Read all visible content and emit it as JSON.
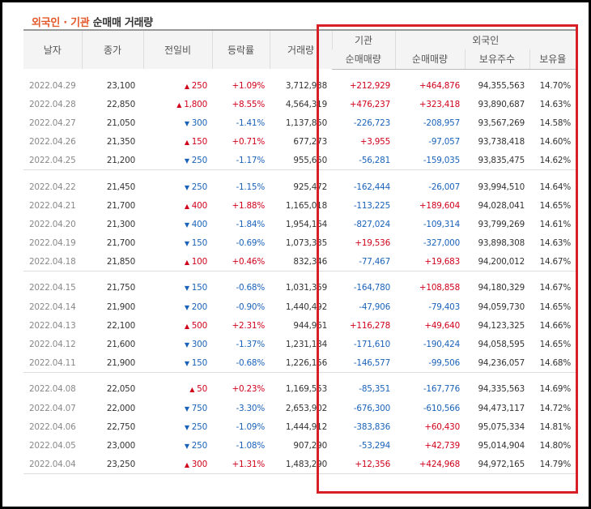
{
  "title": {
    "part1": "외국인",
    "dot": " · ",
    "part2": "기관",
    "rest": " 순매매 거래량"
  },
  "headers": {
    "date": "날자",
    "close": "종가",
    "change": "전일비",
    "rate": "등락률",
    "volume": "거래량",
    "inst": "기관",
    "foreign": "외국인",
    "inst_net": "순매매량",
    "foreign_net": "순매매량",
    "holdings": "보유주수",
    "ratio": "보유율"
  },
  "groups": [
    [
      {
        "date": "2022.04.29",
        "close": "23,100",
        "dir": "up",
        "change": "250",
        "rate": "+1.09%",
        "volume": "3,712,938",
        "inst": "+212,929",
        "foreign": "+464,876",
        "holdings": "94,355,563",
        "ratio": "14.70%"
      },
      {
        "date": "2022.04.28",
        "close": "22,850",
        "dir": "up",
        "change": "1,800",
        "rate": "+8.55%",
        "volume": "4,564,319",
        "inst": "+476,237",
        "foreign": "+323,418",
        "holdings": "93,890,687",
        "ratio": "14.63%"
      },
      {
        "date": "2022.04.27",
        "close": "21,050",
        "dir": "dn",
        "change": "300",
        "rate": "-1.41%",
        "volume": "1,137,850",
        "inst": "-226,723",
        "foreign": "-208,957",
        "holdings": "93,567,269",
        "ratio": "14.58%"
      },
      {
        "date": "2022.04.26",
        "close": "21,350",
        "dir": "up",
        "change": "150",
        "rate": "+0.71%",
        "volume": "677,273",
        "inst": "+3,955",
        "foreign": "-97,057",
        "holdings": "93,738,418",
        "ratio": "14.60%"
      },
      {
        "date": "2022.04.25",
        "close": "21,200",
        "dir": "dn",
        "change": "250",
        "rate": "-1.17%",
        "volume": "955,650",
        "inst": "-56,281",
        "foreign": "-159,035",
        "holdings": "93,835,475",
        "ratio": "14.62%"
      }
    ],
    [
      {
        "date": "2022.04.22",
        "close": "21,450",
        "dir": "dn",
        "change": "250",
        "rate": "-1.15%",
        "volume": "925,472",
        "inst": "-162,444",
        "foreign": "-26,007",
        "holdings": "93,994,510",
        "ratio": "14.64%"
      },
      {
        "date": "2022.04.21",
        "close": "21,700",
        "dir": "up",
        "change": "400",
        "rate": "+1.88%",
        "volume": "1,165,018",
        "inst": "-113,225",
        "foreign": "+189,604",
        "holdings": "94,028,041",
        "ratio": "14.65%"
      },
      {
        "date": "2022.04.20",
        "close": "21,300",
        "dir": "dn",
        "change": "400",
        "rate": "-1.84%",
        "volume": "1,954,164",
        "inst": "-827,024",
        "foreign": "-109,314",
        "holdings": "93,799,269",
        "ratio": "14.61%"
      },
      {
        "date": "2022.04.19",
        "close": "21,700",
        "dir": "dn",
        "change": "150",
        "rate": "-0.69%",
        "volume": "1,073,335",
        "inst": "+19,536",
        "foreign": "-327,000",
        "holdings": "93,898,308",
        "ratio": "14.63%"
      },
      {
        "date": "2022.04.18",
        "close": "21,850",
        "dir": "up",
        "change": "100",
        "rate": "+0.46%",
        "volume": "832,346",
        "inst": "-77,467",
        "foreign": "+19,683",
        "holdings": "94,200,012",
        "ratio": "14.67%"
      }
    ],
    [
      {
        "date": "2022.04.15",
        "close": "21,750",
        "dir": "dn",
        "change": "150",
        "rate": "-0.68%",
        "volume": "1,031,359",
        "inst": "-164,780",
        "foreign": "+108,858",
        "holdings": "94,180,329",
        "ratio": "14.67%"
      },
      {
        "date": "2022.04.14",
        "close": "21,900",
        "dir": "dn",
        "change": "200",
        "rate": "-0.90%",
        "volume": "1,440,492",
        "inst": "-47,906",
        "foreign": "-79,403",
        "holdings": "94,059,730",
        "ratio": "14.65%"
      },
      {
        "date": "2022.04.13",
        "close": "22,100",
        "dir": "up",
        "change": "500",
        "rate": "+2.31%",
        "volume": "944,961",
        "inst": "+116,278",
        "foreign": "+49,640",
        "holdings": "94,123,325",
        "ratio": "14.66%"
      },
      {
        "date": "2022.04.12",
        "close": "21,600",
        "dir": "dn",
        "change": "300",
        "rate": "-1.37%",
        "volume": "1,231,184",
        "inst": "-171,610",
        "foreign": "-190,424",
        "holdings": "94,058,595",
        "ratio": "14.65%"
      },
      {
        "date": "2022.04.11",
        "close": "21,900",
        "dir": "dn",
        "change": "150",
        "rate": "-0.68%",
        "volume": "1,226,156",
        "inst": "-146,577",
        "foreign": "-99,506",
        "holdings": "94,236,057",
        "ratio": "14.68%"
      }
    ],
    [
      {
        "date": "2022.04.08",
        "close": "22,050",
        "dir": "up",
        "change": "50",
        "rate": "+0.23%",
        "volume": "1,169,553",
        "inst": "-85,351",
        "foreign": "-167,776",
        "holdings": "94,335,563",
        "ratio": "14.69%"
      },
      {
        "date": "2022.04.07",
        "close": "22,000",
        "dir": "dn",
        "change": "750",
        "rate": "-3.30%",
        "volume": "2,653,902",
        "inst": "-676,300",
        "foreign": "-610,566",
        "holdings": "94,473,117",
        "ratio": "14.72%"
      },
      {
        "date": "2022.04.06",
        "close": "22,750",
        "dir": "dn",
        "change": "250",
        "rate": "-1.09%",
        "volume": "1,444,912",
        "inst": "-383,836",
        "foreign": "+60,430",
        "holdings": "95,075,334",
        "ratio": "14.81%"
      },
      {
        "date": "2022.04.05",
        "close": "23,000",
        "dir": "dn",
        "change": "250",
        "rate": "-1.08%",
        "volume": "907,290",
        "inst": "-53,294",
        "foreign": "+42,739",
        "holdings": "95,014,904",
        "ratio": "14.80%"
      },
      {
        "date": "2022.04.04",
        "close": "23,250",
        "dir": "up",
        "change": "300",
        "rate": "+1.31%",
        "volume": "1,483,290",
        "inst": "+12,356",
        "foreign": "+424,968",
        "holdings": "94,972,165",
        "ratio": "14.79%"
      }
    ]
  ],
  "colors": {
    "up": "#d0021b",
    "down": "#1a62b9",
    "highlight": "#d81f26",
    "title_accent": "#e4592b"
  },
  "icons": {
    "up": "triangle-up-icon",
    "down": "triangle-down-icon"
  }
}
